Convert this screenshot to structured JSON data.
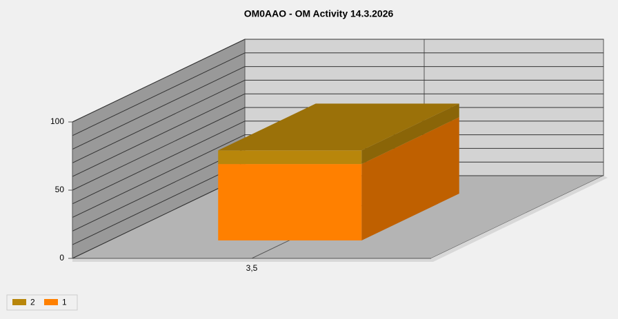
{
  "chart_data": {
    "type": "bar3d_stacked",
    "title": "OM0AAO - OM Activity 14.3.2026",
    "categories": [
      "3,5"
    ],
    "series": [
      {
        "name": "2",
        "color": "#b8860b",
        "values": [
          10
        ]
      },
      {
        "name": "1",
        "color": "#ff8000",
        "values": [
          56
        ]
      }
    ],
    "ylim": [
      0,
      100
    ],
    "yticks": [
      0,
      50,
      100
    ],
    "grid_lines": [
      0,
      10,
      20,
      30,
      40,
      50,
      60,
      70,
      80,
      90,
      100
    ],
    "legend": "bottom-left"
  }
}
